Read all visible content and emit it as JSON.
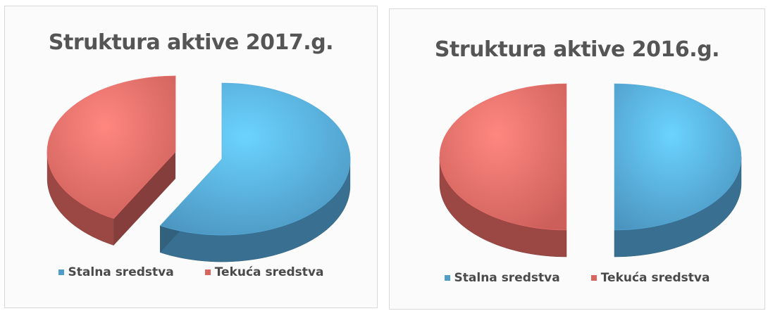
{
  "colors": {
    "stalna": "#4f9cc9",
    "tekuca": "#d7645f"
  },
  "chart_data": [
    {
      "type": "pie",
      "title": "Struktura aktive 2017.g.",
      "categories": [
        "Stalna sredstva",
        "Tekuća sredstva"
      ],
      "values": [
        58,
        42
      ],
      "legend": "bottom"
    },
    {
      "type": "pie",
      "title": "Struktura aktive 2016.g.",
      "categories": [
        "Stalna sredstva",
        "Tekuća sredstva"
      ],
      "values": [
        50,
        50
      ],
      "legend": "bottom"
    }
  ]
}
